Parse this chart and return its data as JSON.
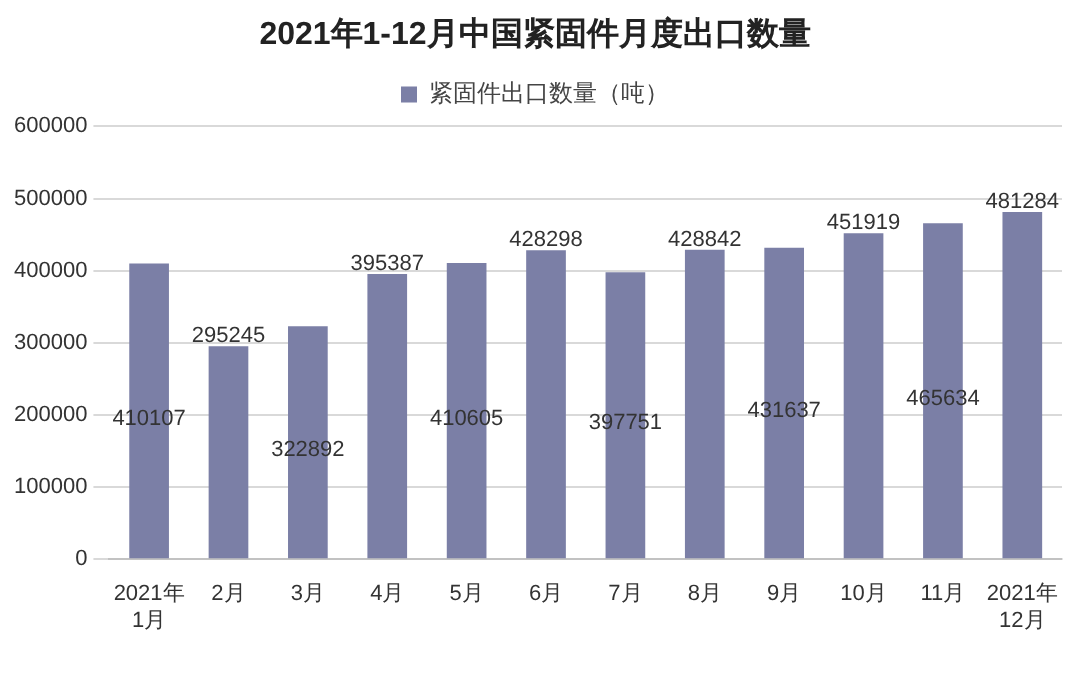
{
  "chart_data": {
    "type": "bar",
    "title": "2021年1-12月中国紧固件月度出口数量",
    "categories": [
      "2021年1月",
      "2月",
      "3月",
      "4月",
      "5月",
      "6月",
      "7月",
      "8月",
      "9月",
      "10月",
      "11月",
      "2021年12月"
    ],
    "series": [
      {
        "name": "紧固件出口数量（吨）",
        "color": "#7b7fa6",
        "values": [
          410107,
          295245,
          322892,
          395387,
          410605,
          428298,
          397751,
          428842,
          431637,
          451919,
          465634,
          481284
        ]
      }
    ],
    "ylim": [
      0,
      600000
    ],
    "yticks": [
      0,
      100000,
      200000,
      300000,
      400000,
      500000,
      600000
    ],
    "grid": "y",
    "legend": "top",
    "data_labels": true
  }
}
